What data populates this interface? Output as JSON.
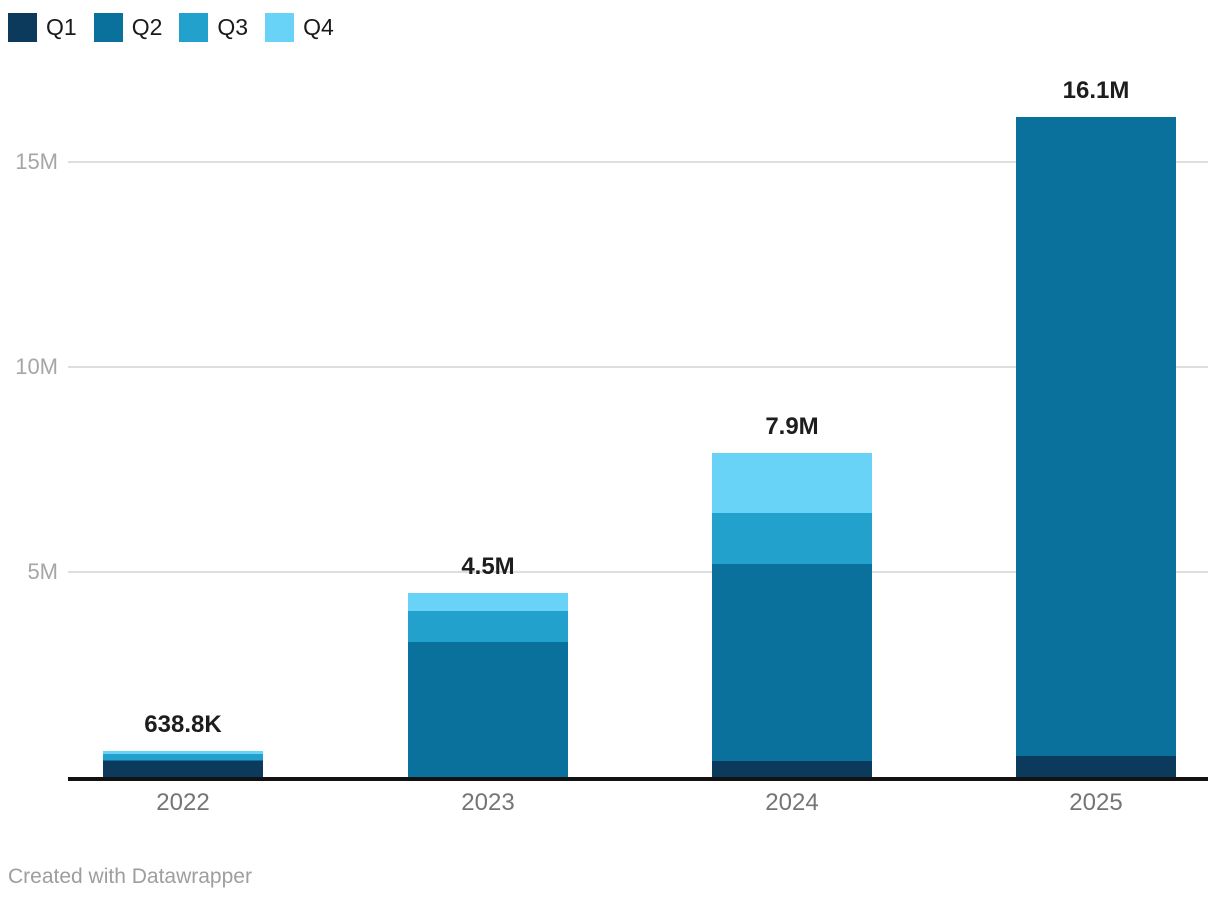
{
  "footer": {
    "credit": "Created with Datawrapper"
  },
  "chart_data": {
    "type": "bar",
    "stacked": true,
    "title": "",
    "xlabel": "",
    "ylabel": "",
    "grid": "horizontal",
    "legend_position": "top-left",
    "categories": [
      "2022",
      "2023",
      "2024",
      "2025"
    ],
    "series": [
      {
        "name": "Q1",
        "color": "#0c3a5d",
        "values": [
          400000,
          0,
          390000,
          520000
        ]
      },
      {
        "name": "Q2",
        "color": "#09719b",
        "values": [
          20000,
          3300000,
          4810000,
          15580000
        ]
      },
      {
        "name": "Q3",
        "color": "#21a1cb",
        "values": [
          130000,
          750000,
          1250000,
          0
        ]
      },
      {
        "name": "Q4",
        "color": "#69d3f7",
        "values": [
          90000,
          450000,
          1450000,
          0
        ]
      }
    ],
    "totals": [
      640000,
      4500000,
      7900000,
      16100000
    ],
    "total_labels": [
      "638.8K",
      "4.5M",
      "7.9M",
      "16.1M"
    ],
    "y_axis": {
      "ticks": [
        {
          "label": "5M",
          "value": 5000000
        },
        {
          "label": "10M",
          "value": 10000000
        },
        {
          "label": "15M",
          "value": 15000000
        }
      ],
      "ylim": [
        0,
        17300000
      ]
    }
  }
}
